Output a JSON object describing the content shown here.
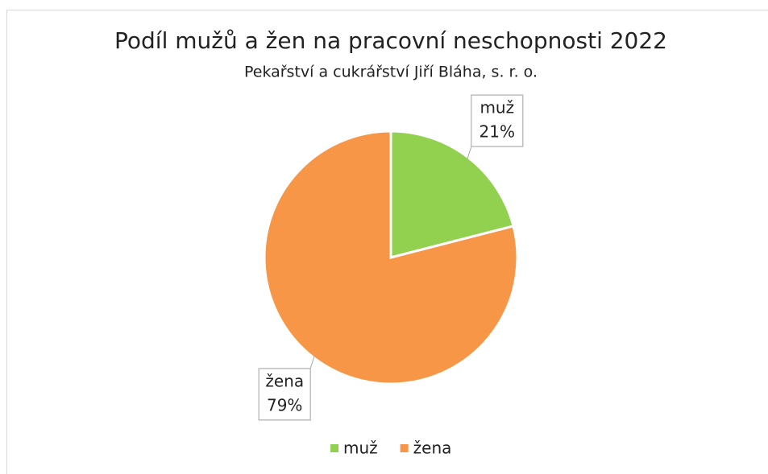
{
  "chart_data": {
    "type": "pie",
    "title": "Podíl mužů a žen na pracovní neschopnosti 2022",
    "subtitle": "Pekařství a cukrářství Jiří Bláha, s. r. o.",
    "categories": [
      "muž",
      "žena"
    ],
    "values": [
      21,
      79
    ],
    "value_labels": [
      "21%",
      "79%"
    ],
    "colors": [
      "#92d050",
      "#f79646"
    ],
    "legend": "bottom"
  }
}
